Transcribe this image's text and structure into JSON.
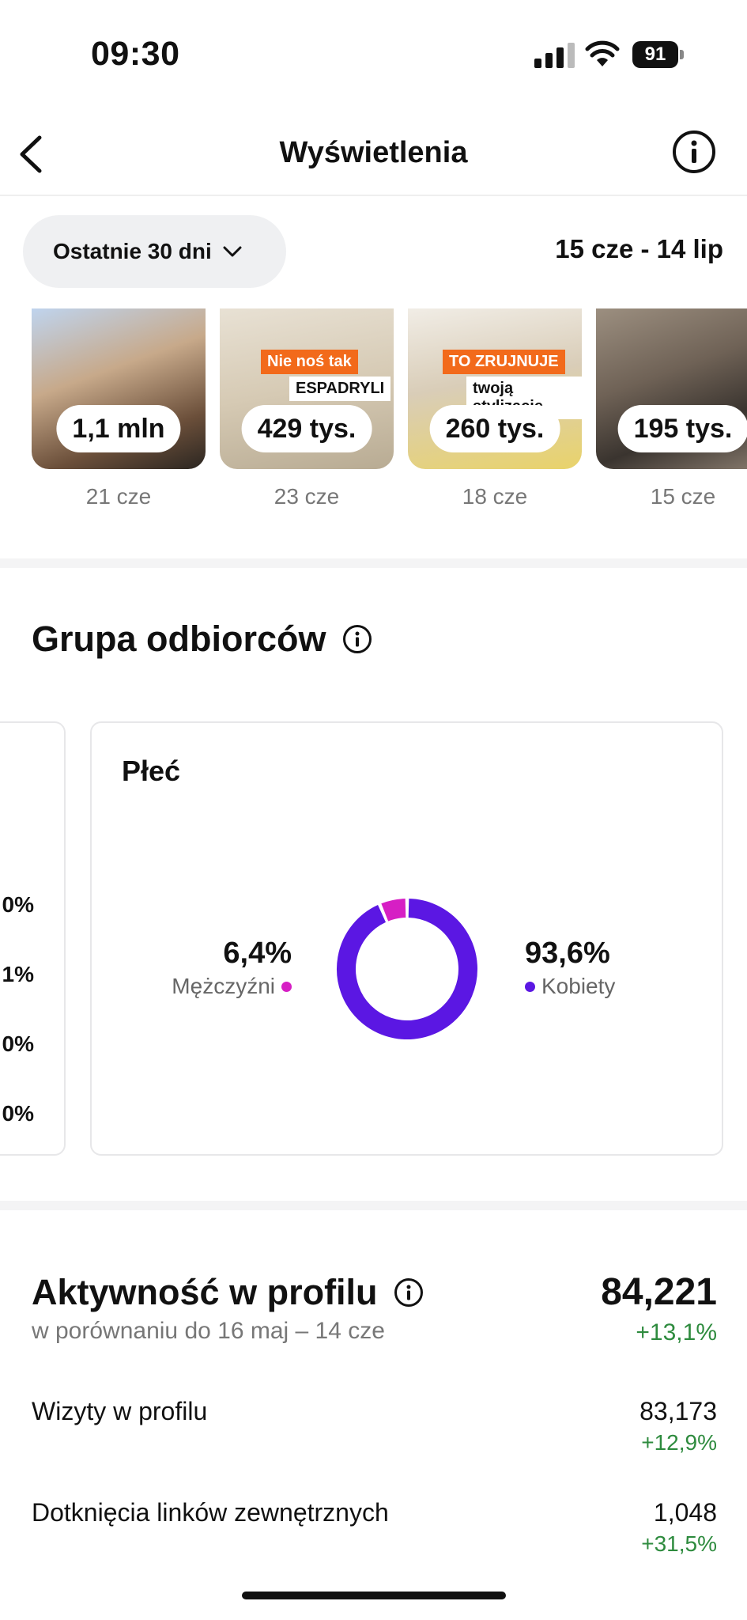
{
  "status_bar": {
    "time": "09:30",
    "battery": "91"
  },
  "nav": {
    "title": "Wyświetlenia",
    "back_icon": "chevron-left-icon",
    "info_icon": "info-icon"
  },
  "filter": {
    "label": "Ostatnie 30 dni",
    "date_range": "15 cze - 14 lip"
  },
  "thumbnails": [
    {
      "views": "1,1 mln",
      "date": "21 cze",
      "overlay": []
    },
    {
      "views": "429 tys.",
      "date": "23 cze",
      "overlay": [
        "Nie noś tak",
        "ESPADRYLI"
      ]
    },
    {
      "views": "260 tys.",
      "date": "18 cze",
      "overlay": [
        "TO ZRUJNUJE",
        "twoją stylizację"
      ]
    },
    {
      "views": "195 tys.",
      "date": "15 cze",
      "overlay": []
    }
  ],
  "audience": {
    "title": "Grupa odbiorców",
    "left_card_values": [
      "0%",
      "1%",
      "0%",
      "0%"
    ],
    "gender_card": {
      "title": "Płeć",
      "male": {
        "value": "6,4%",
        "label": "Mężczyźni",
        "color": "#d61fc4",
        "share": 0.064
      },
      "female": {
        "value": "93,6%",
        "label": "Kobiety",
        "color": "#5b17e3",
        "share": 0.936
      }
    }
  },
  "profile_activity": {
    "title": "Aktywność w profilu",
    "comparison": "w porównaniu do 16 maj – 14 cze",
    "total": "84,221",
    "total_change": "+13,1%",
    "rows": [
      {
        "label": "Wizyty w profilu",
        "value": "83,173",
        "change": "+12,9%"
      },
      {
        "label": "Dotknięcia linków zewnętrznych",
        "value": "1,048",
        "change": "+31,5%"
      }
    ]
  },
  "colors": {
    "positive": "#2e8b3e",
    "male": "#d61fc4",
    "female": "#5b17e3"
  }
}
